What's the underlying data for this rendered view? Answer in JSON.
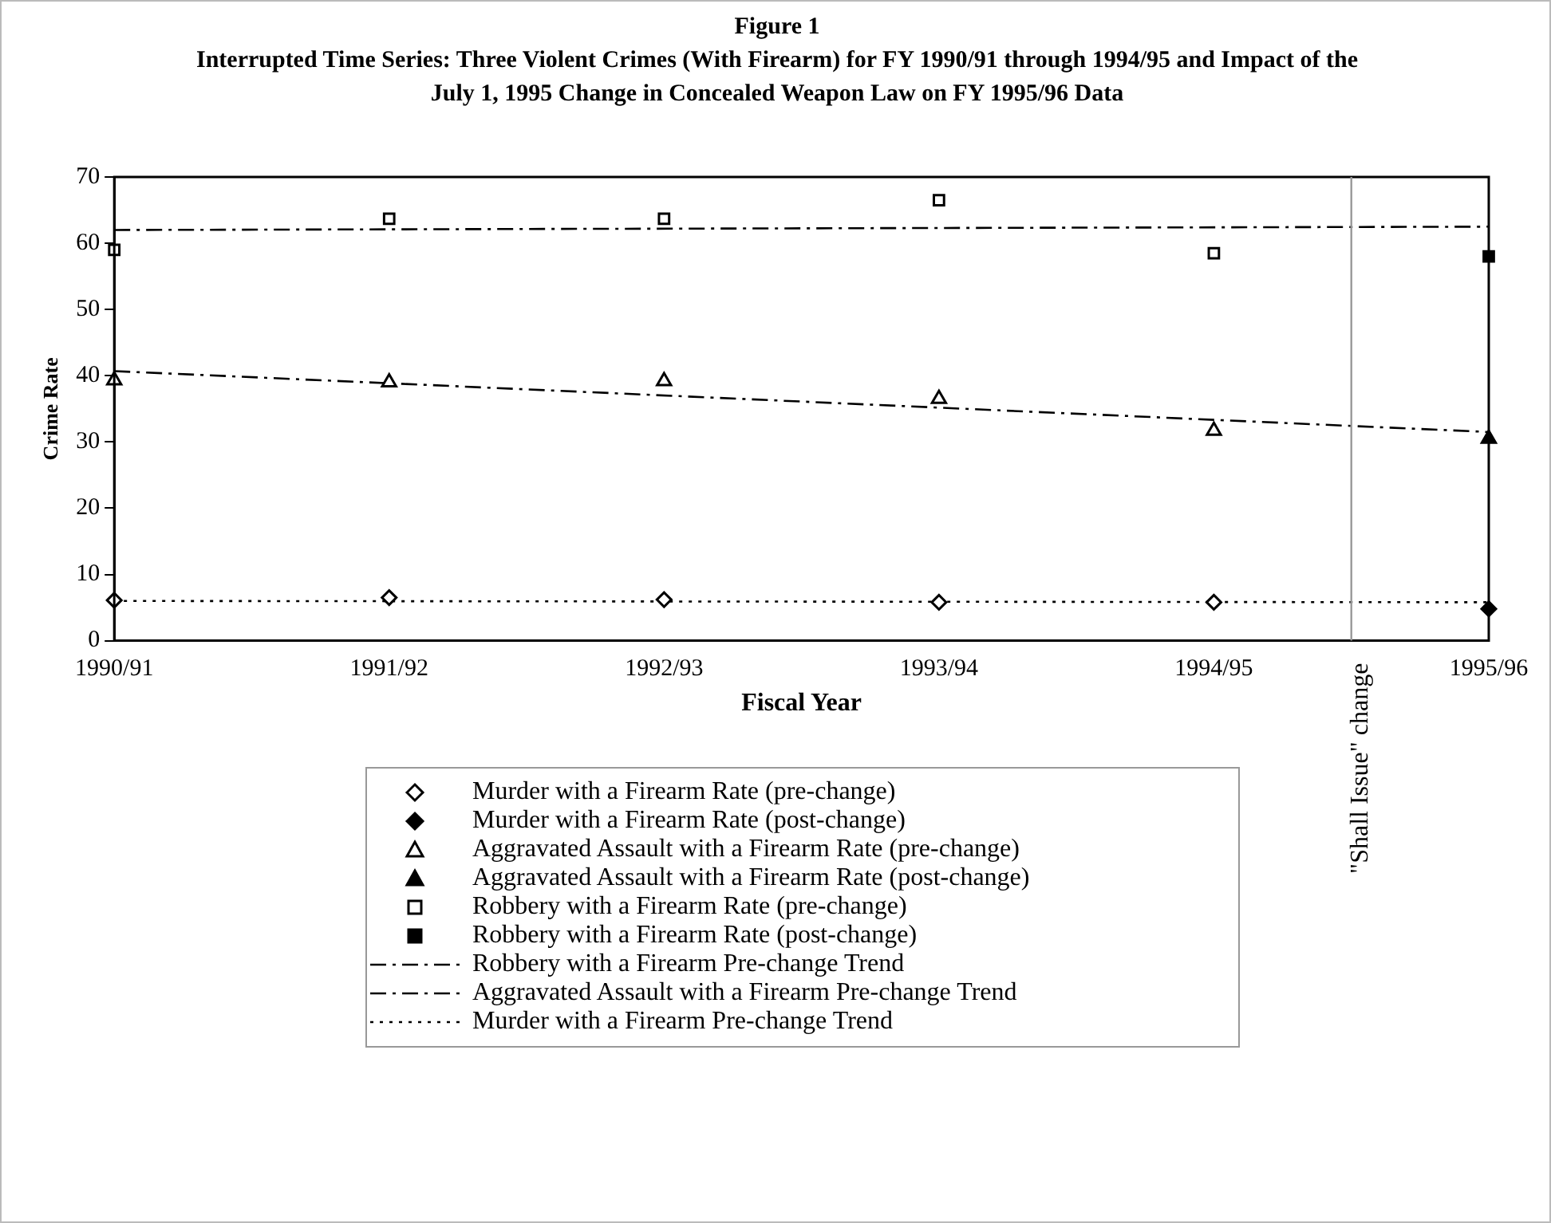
{
  "chart_data": {
    "type": "scatter",
    "title": "Figure 1",
    "subtitle": "Interrupted Time Series: Three Violent Crimes (With Firearm) for FY 1990/91 through 1994/95 and Impact of the July 1, 1995 Change in Concealed Weapon Law on FY 1995/96 Data",
    "xlabel": "Fiscal Year",
    "ylabel": "Crime Rate",
    "categories": [
      "1990/91",
      "1991/92",
      "1992/93",
      "1993/94",
      "1994/95",
      "1995/96"
    ],
    "ylim": [
      0,
      70
    ],
    "yticks": [
      0,
      10,
      20,
      30,
      40,
      50,
      60,
      70
    ],
    "grid": false,
    "legend": "bottom",
    "annotations": [
      "\"Shall Issue\" change"
    ],
    "series": [
      {
        "name": "Murder with a Firearm Rate (pre-change)",
        "marker": "diamond",
        "color": "#ffffff",
        "x": [
          "1990/91",
          "1991/92",
          "1992/93",
          "1993/94",
          "1994/95"
        ],
        "values": [
          6.1,
          6.5,
          6.2,
          5.8,
          5.8
        ]
      },
      {
        "name": "Murder with a Firearm Rate (post-change)",
        "marker": "diamond",
        "color": "#000000",
        "x": [
          "1995/96"
        ],
        "values": [
          4.8
        ]
      },
      {
        "name": "Aggravated Assault with a Firearm Rate (pre-change)",
        "marker": "triangle",
        "color": "#ffffff",
        "x": [
          "1990/91",
          "1991/92",
          "1992/93",
          "1993/94",
          "1994/95"
        ],
        "values": [
          39.3,
          39,
          39.2,
          36.5,
          31.7
        ]
      },
      {
        "name": "Aggravated Assault with a Firearm Rate (post-change)",
        "marker": "triangle",
        "color": "#000000",
        "x": [
          "1995/96"
        ],
        "values": [
          30.5
        ]
      },
      {
        "name": "Robbery with a Firearm Rate (pre-change)",
        "marker": "square",
        "color": "#ffffff",
        "x": [
          "1990/91",
          "1991/92",
          "1992/93",
          "1993/94",
          "1994/95"
        ],
        "values": [
          59,
          63.7,
          63.7,
          66.5,
          58.5
        ]
      },
      {
        "name": "Robbery with a Firearm Rate (post-change)",
        "marker": "square",
        "color": "#000000",
        "x": [
          "1995/96"
        ],
        "values": [
          58
        ]
      },
      {
        "name": "Robbery with a Firearm Pre-change Trend",
        "type": "line",
        "line_style": "dashed",
        "color": "#000000",
        "x": [
          "1990/91",
          "1995/96"
        ],
        "values": [
          62,
          62.5
        ]
      },
      {
        "name": "Aggravated Assault with a Firearm Pre-change Trend",
        "type": "line",
        "line_style": "dashed",
        "color": "#000000",
        "x": [
          "1990/91",
          "1995/96"
        ],
        "values": [
          40.7,
          31.5
        ]
      },
      {
        "name": "Murder with a Firearm Pre-change Trend",
        "type": "line",
        "line_style": "dotted",
        "color": "#000000",
        "x": [
          "1990/91",
          "1995/96"
        ],
        "values": [
          6,
          5.8
        ]
      }
    ]
  }
}
